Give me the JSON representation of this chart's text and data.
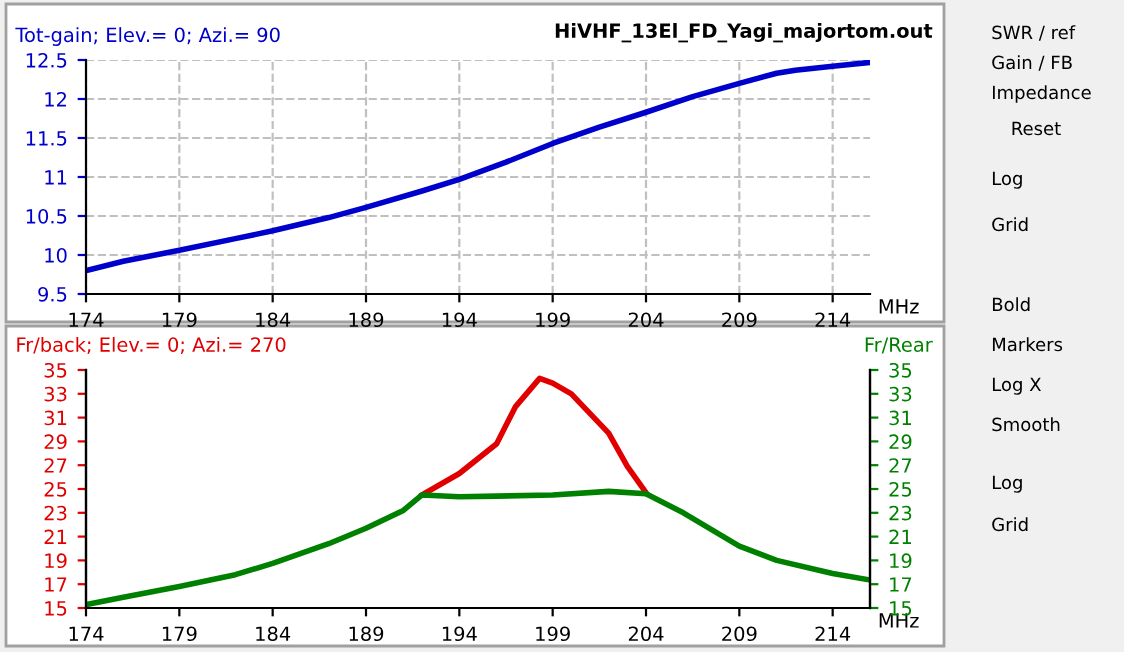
{
  "chart_data": [
    {
      "type": "line",
      "title": "HiVHF_13El_FD_Yagi_majortom.out",
      "ylabel": "Tot-gain; Elev.= 0; Azi.= 90",
      "xlabel": "MHz",
      "xlim": [
        174,
        216
      ],
      "xticks": [
        174,
        179,
        184,
        189,
        194,
        199,
        204,
        209,
        214
      ],
      "ylim": [
        9.5,
        12.5
      ],
      "yticks": [
        9.5,
        10,
        10.5,
        11,
        11.5,
        12,
        12.5
      ],
      "grid": true,
      "line_style": "solid",
      "series": [
        {
          "color": "#0000cc",
          "x": [
            174,
            176,
            179,
            182,
            184,
            187,
            189,
            192,
            194,
            196.5,
            199,
            201.5,
            204,
            206.5,
            209,
            211,
            212,
            214,
            216
          ],
          "values": [
            9.8,
            9.92,
            10.06,
            10.21,
            10.31,
            10.48,
            10.61,
            10.82,
            10.97,
            11.19,
            11.43,
            11.64,
            11.83,
            12.03,
            12.2,
            12.33,
            12.37,
            12.42,
            12.47
          ]
        }
      ]
    },
    {
      "type": "line",
      "ylabel": "Fr/back; Elev.= 0; Azi.= 270",
      "y2label": "Fr/Rear",
      "xlabel": "MHz",
      "xlim": [
        174,
        216
      ],
      "xticks": [
        174,
        179,
        184,
        189,
        194,
        199,
        204,
        209,
        214
      ],
      "ylim": [
        15,
        35
      ],
      "yticks": [
        15,
        17,
        19,
        21,
        23,
        25,
        27,
        29,
        31,
        33,
        35
      ],
      "y2lim": [
        15,
        35
      ],
      "y2ticks": [
        15,
        17,
        19,
        21,
        23,
        25,
        27,
        29,
        31,
        33,
        35
      ],
      "grid": false,
      "line_style": "solid",
      "series": [
        {
          "color": "#e00000",
          "x": [
            192,
            194,
            196,
            197,
            198.3,
            199,
            200,
            202,
            203,
            204
          ],
          "values": [
            24.5,
            26.3,
            28.8,
            31.9,
            34.3,
            33.9,
            33.0,
            29.7,
            26.9,
            24.7
          ]
        },
        {
          "color": "#008000",
          "axis": "y2",
          "x": [
            174,
            176,
            179,
            182,
            184,
            187,
            189,
            191,
            192,
            194,
            196,
            199,
            202,
            204,
            206,
            209,
            211,
            214,
            216
          ],
          "values": [
            15.28,
            15.9,
            16.8,
            17.8,
            18.75,
            20.4,
            21.7,
            23.2,
            24.5,
            24.35,
            24.4,
            24.5,
            24.8,
            24.6,
            23.0,
            20.2,
            19.0,
            17.9,
            17.35
          ]
        }
      ]
    },
    {
      "type": "other",
      "annotations": [
        "SWR / ref",
        "Gain / FB",
        "Impedance",
        "Reset",
        "Log",
        "Grid",
        "Bold",
        "Markers",
        "Log X",
        "Smooth",
        "Log",
        "Grid"
      ]
    }
  ]
}
